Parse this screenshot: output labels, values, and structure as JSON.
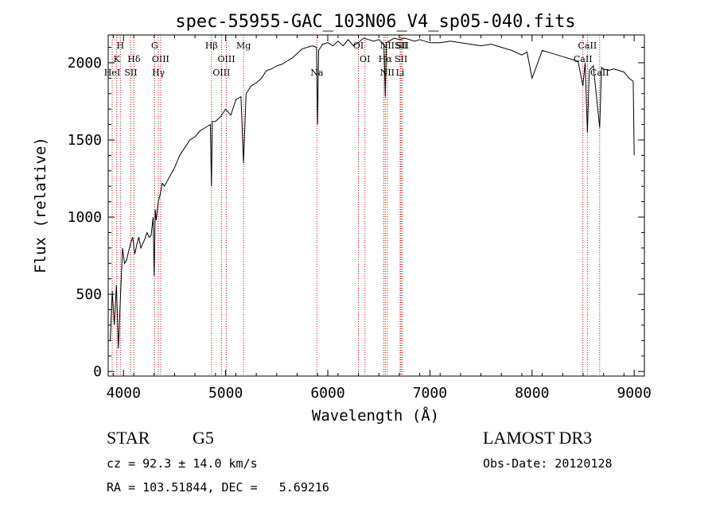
{
  "chart_data": {
    "type": "line",
    "title": "spec-55955-GAC_103N06_V4_sp05-040.fits",
    "xlabel": "Wavelength (Å)",
    "ylabel": "Flux (relative)",
    "xlim": [
      3850,
      9100
    ],
    "ylim": [
      -30,
      2180
    ],
    "x_ticks": [
      4000,
      5000,
      6000,
      7000,
      8000,
      9000
    ],
    "x_tick_labels": [
      "4000",
      "5000",
      "6000",
      "7000",
      "8000",
      "9000"
    ],
    "y_ticks": [
      0,
      500,
      1000,
      1500,
      2000
    ],
    "y_tick_labels": [
      "0",
      "500",
      "1000",
      "1500",
      "2000"
    ],
    "series": [
      {
        "name": "Flux",
        "x": [
          3870,
          3890,
          3910,
          3930,
          3950,
          3970,
          3990,
          4010,
          4030,
          4050,
          4070,
          4090,
          4110,
          4130,
          4150,
          4170,
          4190,
          4210,
          4230,
          4250,
          4270,
          4290,
          4300,
          4310,
          4320,
          4340,
          4360,
          4380,
          4400,
          4450,
          4500,
          4550,
          4600,
          4650,
          4700,
          4750,
          4800,
          4850,
          4861,
          4870,
          4900,
          4950,
          5000,
          5050,
          5100,
          5150,
          5175,
          5200,
          5250,
          5300,
          5350,
          5400,
          5450,
          5500,
          5550,
          5600,
          5650,
          5700,
          5750,
          5800,
          5850,
          5890,
          5900,
          5910,
          5950,
          6000,
          6050,
          6100,
          6150,
          6200,
          6250,
          6300,
          6350,
          6400,
          6450,
          6500,
          6550,
          6563,
          6575,
          6600,
          6650,
          6700,
          6750,
          6800,
          6850,
          6900,
          6950,
          7000,
          7100,
          7200,
          7300,
          7400,
          7500,
          7600,
          7700,
          7800,
          7900,
          7950,
          8000,
          8100,
          8200,
          8300,
          8400,
          8450,
          8498,
          8520,
          8542,
          8560,
          8600,
          8662,
          8680,
          8700,
          8750,
          8800,
          8850,
          8900,
          8950,
          8990,
          9000
        ],
        "y": [
          200,
          520,
          300,
          560,
          150,
          480,
          800,
          700,
          720,
          780,
          830,
          870,
          760,
          820,
          870,
          800,
          830,
          860,
          900,
          870,
          880,
          1000,
          620,
          1050,
          980,
          1100,
          1150,
          1220,
          1200,
          1260,
          1320,
          1400,
          1450,
          1500,
          1520,
          1560,
          1580,
          1600,
          1200,
          1620,
          1620,
          1650,
          1700,
          1660,
          1760,
          1780,
          1350,
          1800,
          1850,
          1870,
          1900,
          1950,
          1960,
          1980,
          1990,
          2010,
          2030,
          2060,
          2090,
          2100,
          2110,
          2100,
          1600,
          2080,
          2120,
          2130,
          2110,
          2140,
          2110,
          2150,
          2110,
          2130,
          2160,
          2150,
          2140,
          2150,
          2120,
          1780,
          2130,
          2140,
          2160,
          2150,
          2160,
          2150,
          2140,
          2150,
          2140,
          2130,
          2130,
          2140,
          2130,
          2120,
          2110,
          2120,
          2100,
          2080,
          2050,
          2070,
          1900,
          2080,
          2060,
          2040,
          2020,
          2010,
          1850,
          2000,
          1550,
          1950,
          1980,
          1580,
          1970,
          1960,
          1950,
          1960,
          1950,
          1940,
          1900,
          1880,
          1400
        ]
      }
    ],
    "lines": [
      {
        "name": "H",
        "wavelength": 3969
      },
      {
        "name": "K",
        "wavelength": 3934
      },
      {
        "name": "HeI",
        "wavelength": 3889
      },
      {
        "name": "SII",
        "wavelength": 4072
      },
      {
        "name": "Hδ",
        "wavelength": 4102
      },
      {
        "name": "G",
        "wavelength": 4305
      },
      {
        "name": "OIII",
        "wavelength": 4363
      },
      {
        "name": "Hγ",
        "wavelength": 4341
      },
      {
        "name": "Hβ",
        "wavelength": 4861
      },
      {
        "name": "OIII",
        "wavelength": 4959
      },
      {
        "name": "OIII",
        "wavelength": 5007
      },
      {
        "name": "Mg",
        "wavelength": 5175
      },
      {
        "name": "Na",
        "wavelength": 5893
      },
      {
        "name": "OI",
        "wavelength": 6300
      },
      {
        "name": "OI",
        "wavelength": 6364
      },
      {
        "name": "NII",
        "wavelength": 6548
      },
      {
        "name": "Hα",
        "wavelength": 6563
      },
      {
        "name": "NII",
        "wavelength": 6583
      },
      {
        "name": "SII",
        "wavelength": 6717
      },
      {
        "name": "SII",
        "wavelength": 6731
      },
      {
        "name": "Li",
        "wavelength": 6708
      },
      {
        "name": "CaII",
        "wavelength": 8498
      },
      {
        "name": "CaII",
        "wavelength": 8542
      },
      {
        "name": "CaII",
        "wavelength": 8662
      }
    ],
    "line_labels": [
      {
        "text": "H",
        "row": 1,
        "wavelength": 3969
      },
      {
        "text": "K",
        "row": 2,
        "wavelength": 3934
      },
      {
        "text": "HeI",
        "row": 3,
        "wavelength": 3889
      },
      {
        "text": "SII",
        "row": 3,
        "wavelength": 4072
      },
      {
        "text": "Hδ",
        "row": 2,
        "wavelength": 4102
      },
      {
        "text": "G",
        "row": 1,
        "wavelength": 4305
      },
      {
        "text": "OIII",
        "row": 2,
        "wavelength": 4363
      },
      {
        "text": "Hγ",
        "row": 3,
        "wavelength": 4341
      },
      {
        "text": "Hβ",
        "row": 1,
        "wavelength": 4861
      },
      {
        "text": "OIII",
        "row": 2,
        "wavelength": 5007
      },
      {
        "text": "OIII",
        "row": 3,
        "wavelength": 4959
      },
      {
        "text": "Mg",
        "row": 1,
        "wavelength": 5175
      },
      {
        "text": "Na",
        "row": 3,
        "wavelength": 5893
      },
      {
        "text": "OI",
        "row": 1,
        "wavelength": 6300
      },
      {
        "text": "OI",
        "row": 2,
        "wavelength": 6364
      },
      {
        "text": "NII",
        "row": 1,
        "wavelength": 6583
      },
      {
        "text": "SII",
        "row": 1,
        "wavelength": 6717
      },
      {
        "text": "SII",
        "row": 1,
        "wavelength": 6731
      },
      {
        "text": "Hα",
        "row": 2,
        "wavelength": 6563
      },
      {
        "text": "SII",
        "row": 2,
        "wavelength": 6717
      },
      {
        "text": "NII",
        "row": 3,
        "wavelength": 6583
      },
      {
        "text": "Li",
        "row": 3,
        "wavelength": 6708
      },
      {
        "text": "CaII",
        "row": 1,
        "wavelength": 8542
      },
      {
        "text": "CaII",
        "row": 2,
        "wavelength": 8498
      },
      {
        "text": "CaII",
        "row": 3,
        "wavelength": 8662
      }
    ],
    "line_color": "#cc0000",
    "spectrum_color": "#000000"
  },
  "info": {
    "object_class": "STAR",
    "subclass": "G5",
    "survey": "LAMOST DR3",
    "cz": "cz = 92.3 ± 14.0 km/s",
    "obs_date": "Obs-Date: 20120128",
    "coords": "RA = 103.51844, DEC =   5.69216"
  }
}
